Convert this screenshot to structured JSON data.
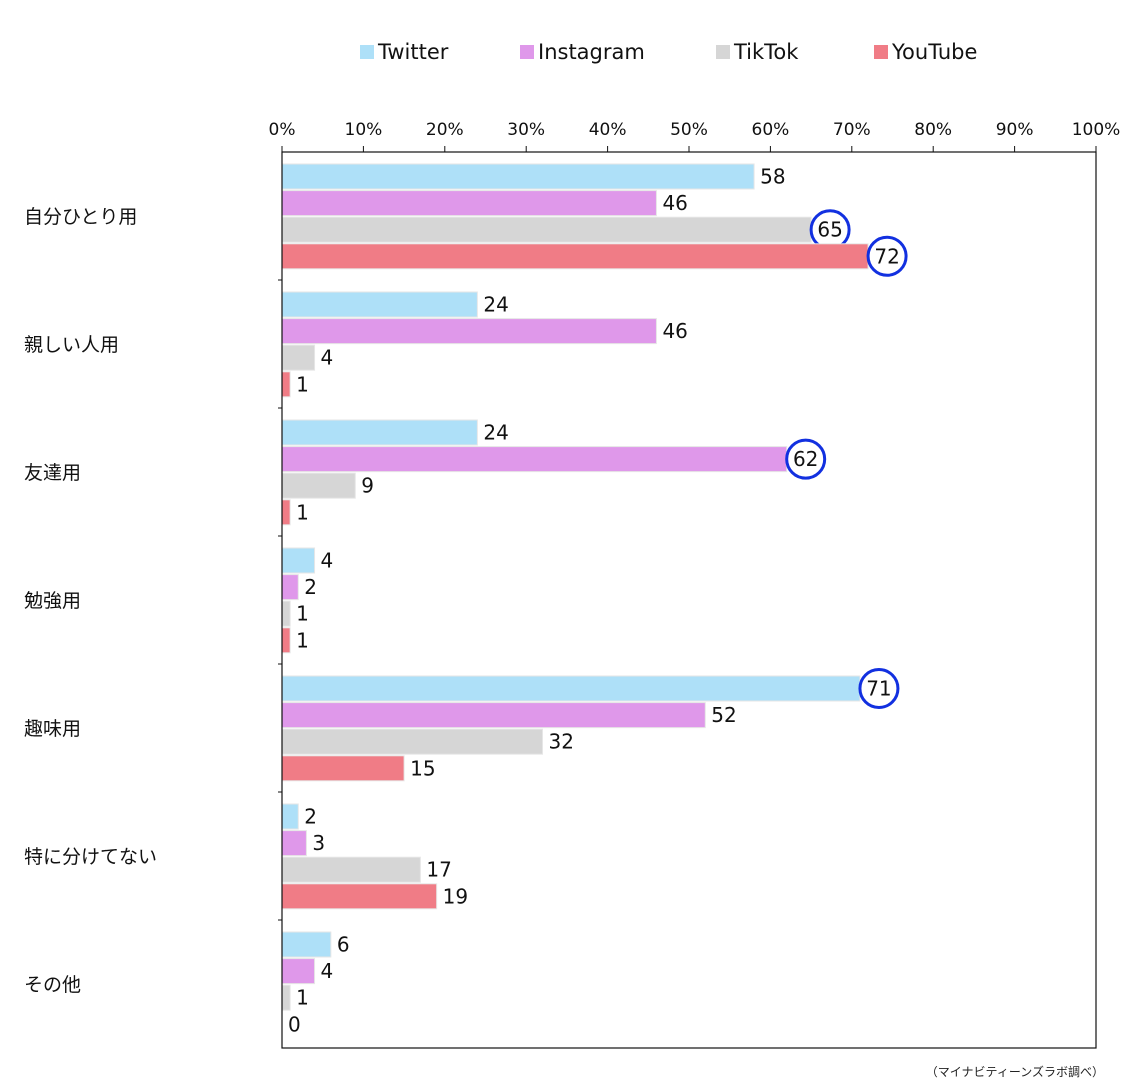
{
  "chart_data": {
    "type": "bar",
    "orientation": "horizontal",
    "categories": [
      "自分ひとり用",
      "親しい人用",
      "友達用",
      "勉強用",
      "趣味用",
      "特に分けてない",
      "その他"
    ],
    "series": [
      {
        "name": "Twitter",
        "color": "#aee0f8",
        "values": [
          58,
          24,
          24,
          4,
          71,
          2,
          6
        ]
      },
      {
        "name": "Instagram",
        "color": "#df98ea",
        "values": [
          46,
          46,
          62,
          2,
          52,
          3,
          4
        ]
      },
      {
        "name": "TikTok",
        "color": "#d6d6d6",
        "values": [
          65,
          4,
          9,
          1,
          32,
          17,
          1
        ]
      },
      {
        "name": "YouTube",
        "color": "#f07c86",
        "values": [
          72,
          1,
          1,
          1,
          15,
          19,
          0
        ]
      }
    ],
    "highlighted": [
      {
        "series": "TikTok",
        "category": "自分ひとり用"
      },
      {
        "series": "YouTube",
        "category": "自分ひとり用"
      },
      {
        "series": "Instagram",
        "category": "友達用"
      },
      {
        "series": "Twitter",
        "category": "趣味用"
      }
    ],
    "highlight_color": "#1230e0",
    "xlim": [
      0,
      100
    ],
    "xticks": [
      0,
      10,
      20,
      30,
      40,
      50,
      60,
      70,
      80,
      90,
      100
    ],
    "tick_suffix": "%",
    "legend_position": "top",
    "grid": false,
    "source_note": "（マイナビティーンズラボ調べ）"
  }
}
